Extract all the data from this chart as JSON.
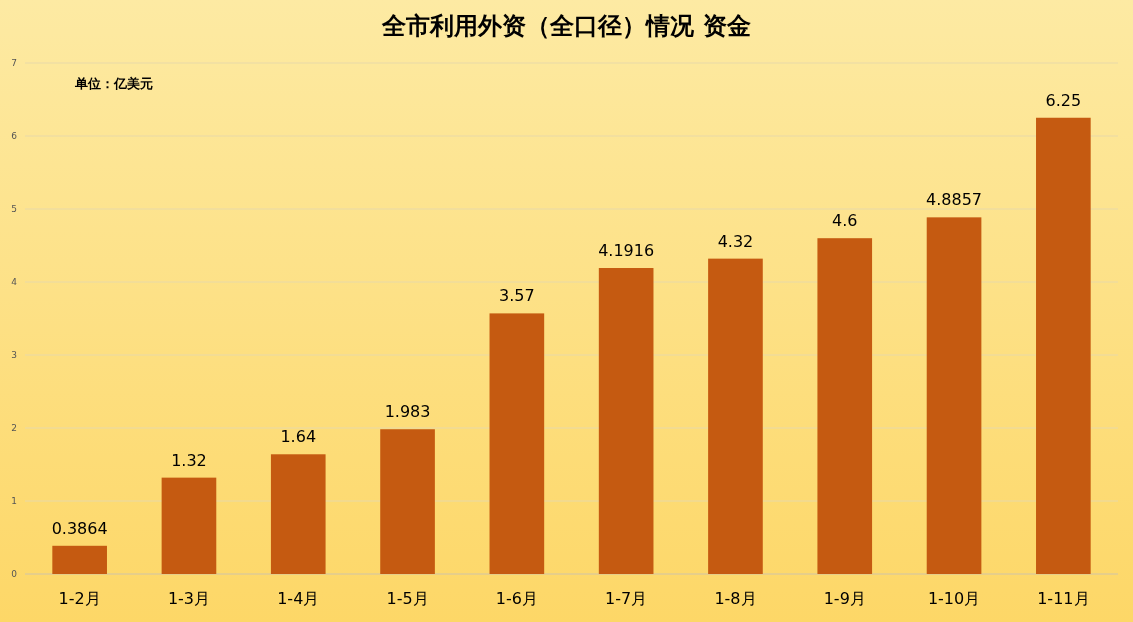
{
  "chart_data": {
    "type": "bar",
    "title": "全市利用外资（全口径）情况 资金",
    "annotations": [
      "单位：亿美元"
    ],
    "categories": [
      "1-2月",
      "1-3月",
      "1-4月",
      "1-5月",
      "1-6月",
      "1-7月",
      "1-8月",
      "1-9月",
      "1-10月",
      "1-11月"
    ],
    "values": [
      0.3864,
      1.32,
      1.64,
      1.983,
      3.57,
      4.1916,
      4.32,
      4.6,
      4.8857,
      6.25
    ],
    "color": "#c55a11",
    "ylim": [
      0,
      7
    ],
    "yticks": [
      0,
      1,
      2,
      3,
      4,
      5,
      6,
      7
    ],
    "grid": "y",
    "data_labels": true
  }
}
